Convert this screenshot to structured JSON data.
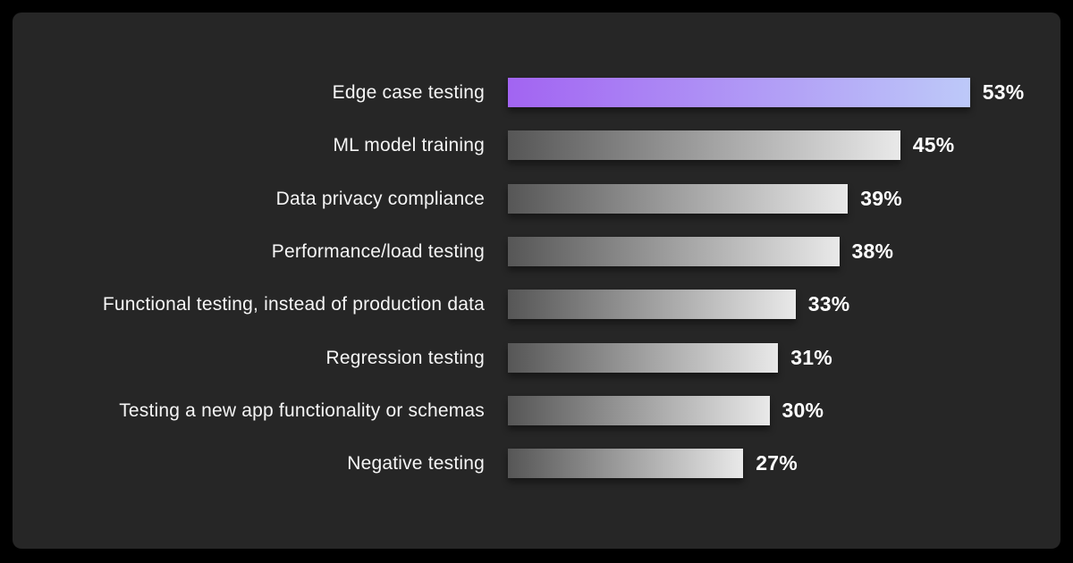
{
  "page": {
    "background": "#000000"
  },
  "card": {
    "background": "#262626"
  },
  "chart_data": {
    "type": "bar",
    "orientation": "horizontal",
    "title": "",
    "xlabel": "",
    "ylabel": "",
    "grid": false,
    "legend": false,
    "xlim": [
      0,
      60
    ],
    "categories": [
      "Edge case testing",
      "ML model training",
      "Data privacy compliance",
      "Performance/load testing",
      "Functional testing, instead of production data",
      "Regression testing",
      "Testing a new app functionality or schemas",
      "Negative testing"
    ],
    "values": [
      53,
      45,
      39,
      38,
      33,
      31,
      30,
      27
    ],
    "value_suffix": "%",
    "highlight_index": 0,
    "colors": {
      "highlight_gradient_start": "#a264f2",
      "highlight_gradient_end": "#bdc9f9",
      "default_gradient_start": "#565656",
      "default_gradient_end": "#e9e9e9",
      "label_text": "#f5f5f5",
      "value_text": "#ffffff"
    }
  }
}
